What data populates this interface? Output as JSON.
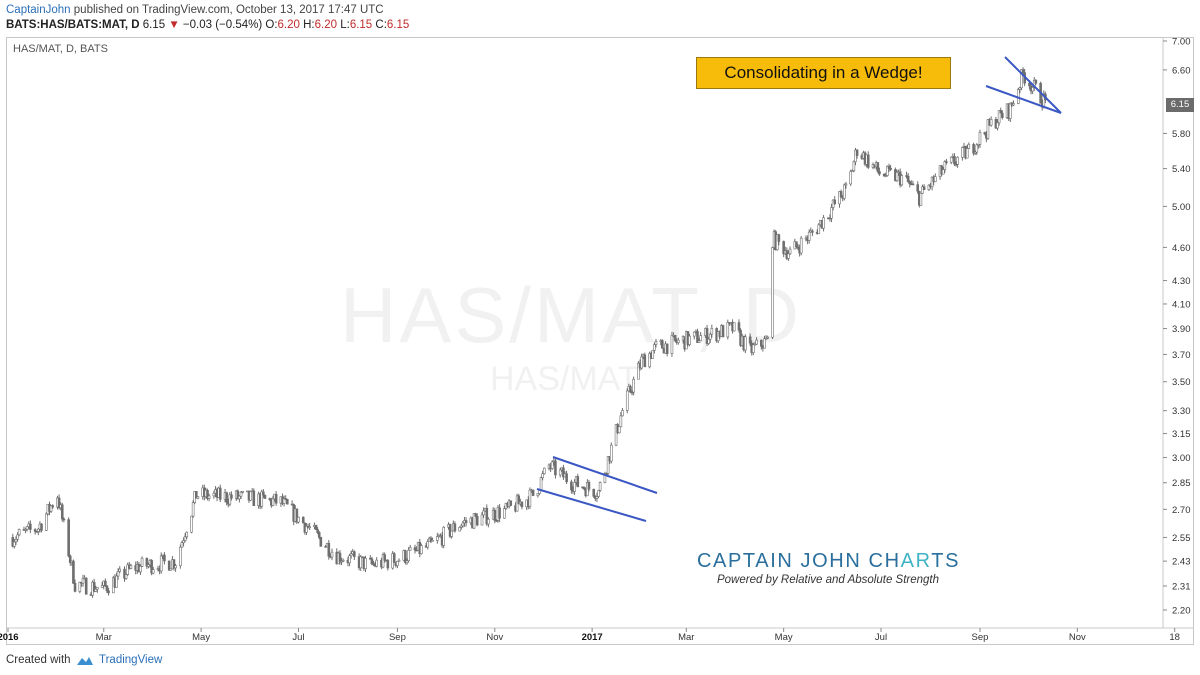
{
  "header": {
    "author": "CaptainJohn",
    "published": " published on TradingView.com, October 13, 2017 17:47 UTC",
    "symbol_line": "BATS:HAS/BATS:MAT, D",
    "last": "6.15",
    "change": "−0.03 (−0.54%)",
    "o_label": "O:",
    "o_value": "6.20",
    "h_label": "H:",
    "h_value": "6.20",
    "l_label": "L:",
    "l_value": "6.15",
    "c_label": "C:",
    "c_value": "6.15"
  },
  "chart": {
    "symbol_label": "HAS/MAT, D, BATS",
    "watermark_main": "HAS/MAT, D",
    "watermark_sub": "HAS/MAT",
    "callout": "Consolidating in a Wedge!",
    "last_price_tag": "6.15",
    "brand_part1": "CAPTAIN  JOHN  CH",
    "brand_part2": "AR",
    "brand_part3": "TS",
    "brand_tagline": "Powered by Relative and  Absolute Strength",
    "colors": {
      "bar": "#6e6e6e",
      "trendline": "#3a57c4",
      "callout_bg": "#f7bb09",
      "brand": "#2a6f9d"
    }
  },
  "chart_data": {
    "type": "line",
    "title": "HAS/MAT, D, BATS",
    "y_scale": "log",
    "y_ticks": [
      "7.00",
      "6.60",
      "6.15",
      "5.80",
      "5.40",
      "5.00",
      "4.60",
      "4.30",
      "4.10",
      "3.90",
      "3.70",
      "3.50",
      "3.30",
      "3.15",
      "3.00",
      "2.85",
      "2.70",
      "2.55",
      "2.43",
      "2.31",
      "2.20"
    ],
    "x_ticks": [
      "2016",
      "Mar",
      "May",
      "Jul",
      "Sep",
      "Nov",
      "2017",
      "Mar",
      "May",
      "Jul",
      "Sep",
      "Nov",
      "18"
    ],
    "ylim": [
      2.12,
      7.05
    ],
    "series": [
      {
        "x": [
          "2016-01-04",
          "2016-01-20",
          "2016-02-01",
          "2016-02-12",
          "2016-03-01",
          "2016-03-20",
          "2016-04-15",
          "2016-04-28",
          "2016-05-15",
          "2016-06-01",
          "2016-06-20",
          "2016-07-05",
          "2016-07-25",
          "2016-08-15",
          "2016-09-01",
          "2016-09-20",
          "2016-10-10",
          "2016-10-25",
          "2016-11-10",
          "2016-11-25",
          "2016-12-05",
          "2016-12-20",
          "2017-01-05",
          "2017-01-20",
          "2017-02-01",
          "2017-02-10",
          "2017-02-25",
          "2017-03-15",
          "2017-03-30",
          "2017-04-10",
          "2017-04-20",
          "2017-04-24",
          "2017-05-05",
          "2017-05-20",
          "2017-06-10",
          "2017-06-16",
          "2017-06-30",
          "2017-07-15",
          "2017-07-25",
          "2017-08-10",
          "2017-08-25",
          "2017-09-10",
          "2017-09-20",
          "2017-09-28",
          "2017-10-13"
        ],
        "y": [
          2.55,
          2.6,
          2.78,
          2.32,
          2.3,
          2.4,
          2.43,
          2.78,
          2.77,
          2.76,
          2.74,
          2.62,
          2.46,
          2.41,
          2.44,
          2.5,
          2.62,
          2.66,
          2.7,
          2.78,
          2.95,
          2.85,
          2.8,
          3.3,
          3.65,
          3.75,
          3.8,
          3.85,
          3.9,
          3.73,
          3.8,
          4.68,
          4.55,
          4.75,
          5.2,
          5.62,
          5.35,
          5.3,
          5.1,
          5.4,
          5.6,
          5.95,
          6.1,
          6.55,
          6.15
        ]
      }
    ],
    "annotations": [
      "Consolidating in a Wedge!"
    ]
  },
  "footer": {
    "created_with": "Created with",
    "tradingview": "TradingView"
  }
}
